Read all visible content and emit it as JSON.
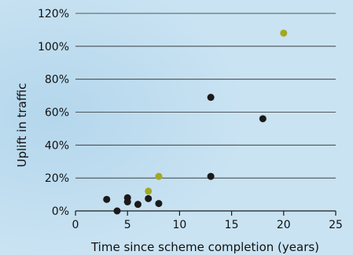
{
  "chart_data": {
    "type": "scatter",
    "title": "",
    "xlabel": "Time since scheme completion (years)",
    "ylabel": "Uplift in traffic",
    "xlim": [
      0,
      25
    ],
    "ylim": [
      0,
      120
    ],
    "x_ticks": [
      0,
      5,
      10,
      15,
      20,
      25
    ],
    "x_tick_labels": [
      "0",
      "5",
      "10",
      "15",
      "20",
      "25"
    ],
    "y_ticks": [
      0,
      20,
      40,
      60,
      80,
      100,
      120
    ],
    "y_tick_labels": [
      "0%",
      "20%",
      "40%",
      "60%",
      "80%",
      "100%",
      "120%"
    ],
    "grid": "horizontal",
    "series": [
      {
        "color": "#1a1a1a",
        "points": [
          {
            "x": 3,
            "y": 7
          },
          {
            "x": 4,
            "y": 0
          },
          {
            "x": 5,
            "y": 8
          },
          {
            "x": 5,
            "y": 5.5
          },
          {
            "x": 6,
            "y": 4
          },
          {
            "x": 7,
            "y": 7.5
          },
          {
            "x": 8,
            "y": 4.5
          },
          {
            "x": 13,
            "y": 69
          },
          {
            "x": 13,
            "y": 21
          },
          {
            "x": 18,
            "y": 56
          }
        ]
      },
      {
        "color": "#a3a823",
        "points": [
          {
            "x": 7,
            "y": 12
          },
          {
            "x": 8,
            "y": 21
          },
          {
            "x": 20,
            "y": 108
          }
        ]
      }
    ]
  }
}
